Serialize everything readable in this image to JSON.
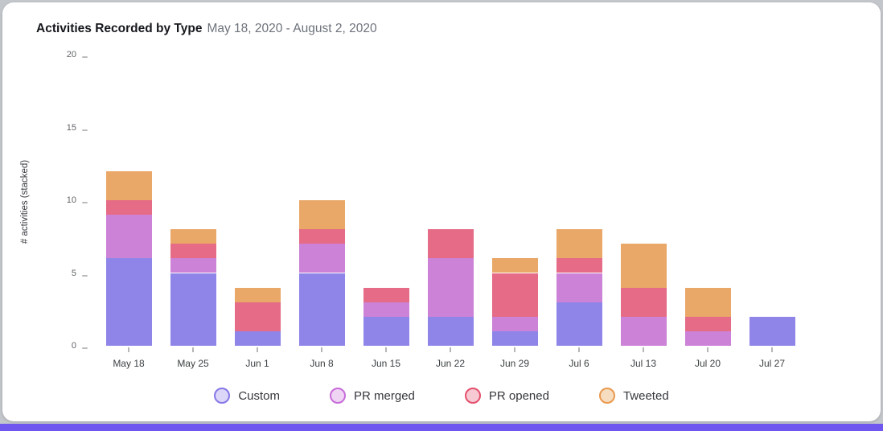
{
  "page": {
    "background": "#c3c6cb",
    "card_background": "#ffffff",
    "bottom_bar_color": "#6e56ef"
  },
  "header": {
    "title": "Activities Recorded by Type",
    "subtitle": "May 18, 2020 - August 2, 2020"
  },
  "chart_data": {
    "type": "bar",
    "stacked": true,
    "title": "Activities Recorded by Type",
    "subtitle": "May 18, 2020 - August 2, 2020",
    "xlabel": "",
    "ylabel": "# activities (stacked)",
    "ylim": [
      0,
      20
    ],
    "yticks": [
      0,
      5,
      10,
      15,
      20
    ],
    "grid": false,
    "legend_position": "bottom",
    "categories": [
      "May 18",
      "May 25",
      "Jun 1",
      "Jun 8",
      "Jun 15",
      "Jun 22",
      "Jun 29",
      "Jul 6",
      "Jul 13",
      "Jul 20",
      "Jul 27"
    ],
    "series": [
      {
        "name": "Custom",
        "color": "#8f85e9",
        "legend_border": "#8577e7",
        "legend_fill": "#dcd6f8",
        "values": [
          6,
          5,
          1,
          5,
          2,
          2,
          1,
          3,
          0,
          0,
          2
        ]
      },
      {
        "name": "PR merged",
        "color": "#cc82d7",
        "legend_border": "#c76bd9",
        "legend_fill": "#f0d4f4",
        "values": [
          3,
          1,
          0,
          2,
          1,
          4,
          1,
          2,
          2,
          1,
          0
        ]
      },
      {
        "name": "PR opened",
        "color": "#e56b86",
        "legend_border": "#e4506e",
        "legend_fill": "#f7c9d3",
        "values": [
          1,
          1,
          2,
          1,
          1,
          2,
          3,
          1,
          2,
          1,
          0
        ]
      },
      {
        "name": "Tweeted",
        "color": "#e9a768",
        "legend_border": "#e9994e",
        "legend_fill": "#f7ddc0",
        "values": [
          2,
          1,
          1,
          2,
          0,
          0,
          1,
          2,
          3,
          2,
          0
        ]
      }
    ],
    "totals": [
      12,
      8,
      4,
      10,
      4,
      8,
      6,
      8,
      7,
      4,
      2
    ]
  }
}
